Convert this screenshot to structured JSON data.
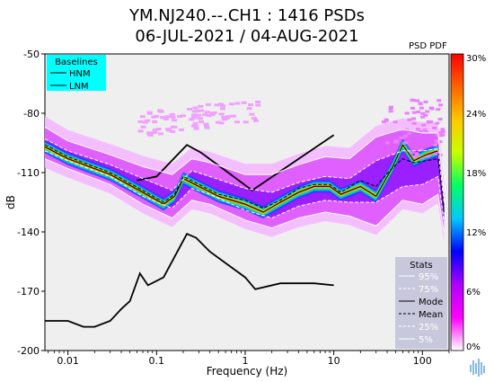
{
  "header": {
    "title_line1": "YM.NJ240.--.CH1 : 1416 PSDs",
    "title_line2": "06-JUL-2021 / 04-AUG-2021",
    "pdf_label": "PSD PDF"
  },
  "chart_data": {
    "type": "line",
    "xlabel": "Frequency (Hz)",
    "ylabel": "dB",
    "x_scale": "log",
    "xlim": [
      0.0055,
      200
    ],
    "ylim": [
      -200,
      -50
    ],
    "x_ticks": [
      0.01,
      0.1,
      1,
      10,
      100
    ],
    "x_tick_labels": [
      "0.01",
      "0.1",
      "1",
      "10",
      "100"
    ],
    "y_ticks": [
      -50,
      -80,
      -110,
      -140,
      -170,
      -200
    ],
    "y_tick_labels": [
      "-50",
      "-80",
      "-110",
      "-140",
      "-170",
      "-200"
    ],
    "baselines_legend": {
      "title": "Baselines",
      "entries": [
        "HNM",
        "LNM"
      ],
      "background": "#00ffff"
    },
    "stats_legend": {
      "title": "Stats",
      "entries": [
        "95%",
        "75%",
        "Mode",
        "Mean",
        "25%",
        "5%"
      ],
      "background": "#c8c8dc"
    },
    "colorbar": {
      "min": 0,
      "max": 30,
      "unit": "%",
      "tick_labels": [
        "30%",
        "24%",
        "18%",
        "12%",
        "6%",
        "0%"
      ],
      "colors": [
        "#ffffff",
        "#ff00ff",
        "#b000ff",
        "#0000ff",
        "#00c8ff",
        "#00ff64",
        "#c8ff00",
        "#ffc800",
        "#ff6400",
        "#ff0000"
      ]
    },
    "series": [
      {
        "name": "HNM",
        "color": "#000000",
        "x": [
          0.06,
          0.1,
          0.22,
          0.32,
          1.2,
          10
        ],
        "y": [
          -114,
          -112,
          -96,
          -100,
          -119,
          -91
        ]
      },
      {
        "name": "LNM",
        "color": "#000000",
        "x": [
          0.0055,
          0.006,
          0.01,
          0.015,
          0.02,
          0.03,
          0.04,
          0.05,
          0.065,
          0.08,
          0.12,
          0.22,
          0.28,
          0.4,
          1.0,
          1.3,
          2.5,
          6.0,
          10
        ],
        "y": [
          -185,
          -185,
          -185,
          -188,
          -188,
          -185,
          -179,
          -175,
          -161,
          -167,
          -163,
          -141,
          -143,
          -150,
          -163,
          -169,
          -166,
          -166,
          -167
        ]
      },
      {
        "name": "Mode",
        "color": "#000000",
        "x": [
          0.0055,
          0.01,
          0.03,
          0.07,
          0.12,
          0.16,
          0.2,
          0.3,
          0.5,
          1.0,
          1.6,
          2.5,
          4.0,
          6.0,
          9.0,
          12,
          20,
          30,
          45,
          60,
          80,
          110,
          150,
          175
        ],
        "y": [
          -97,
          -103,
          -111,
          -120,
          -126,
          -122,
          -113,
          -117,
          -122,
          -126,
          -130,
          -125,
          -120,
          -117,
          -117,
          -121,
          -117,
          -122,
          -108,
          -96,
          -104,
          -101,
          -99,
          -130
        ]
      },
      {
        "name": "Mean",
        "color": "#000000",
        "x": [
          0.0055,
          0.01,
          0.03,
          0.07,
          0.12,
          0.16,
          0.2,
          0.3,
          0.5,
          1.0,
          1.6,
          2.5,
          4.0,
          6.0,
          9.0,
          12,
          20,
          30,
          45,
          60,
          80,
          110,
          150,
          175
        ],
        "y": [
          -96,
          -102,
          -110,
          -119,
          -125,
          -121,
          -112,
          -116,
          -121,
          -124,
          -128,
          -124,
          -118,
          -116,
          -116,
          -120,
          -114,
          -117,
          -108,
          -103,
          -105,
          -104,
          -103,
          -128
        ]
      },
      {
        "name": "95%",
        "color": "#ffffff",
        "x": [
          0.0055,
          0.01,
          0.03,
          0.07,
          0.15,
          0.25,
          0.4,
          1.0,
          2.0,
          4.0,
          8.0,
          15,
          30,
          60,
          100,
          150,
          175
        ],
        "y": [
          -87,
          -94,
          -101,
          -107,
          -111,
          -103,
          -105,
          -111,
          -111,
          -106,
          -102,
          -103,
          -92,
          -88,
          -90,
          -90,
          -120
        ]
      },
      {
        "name": "75%",
        "color": "#ffffff",
        "x": [
          0.0055,
          0.01,
          0.03,
          0.07,
          0.15,
          0.25,
          0.4,
          1.0,
          2.0,
          4.0,
          8.0,
          15,
          30,
          60,
          100,
          150,
          175
        ],
        "y": [
          -93,
          -99,
          -106,
          -113,
          -119,
          -109,
          -112,
          -118,
          -120,
          -115,
          -112,
          -113,
          -104,
          -99,
          -99,
          -98,
          -125
        ]
      },
      {
        "name": "25%",
        "color": "#ffffff",
        "x": [
          0.0055,
          0.01,
          0.03,
          0.07,
          0.15,
          0.25,
          0.4,
          1.0,
          2.0,
          4.0,
          8.0,
          15,
          30,
          60,
          100,
          150,
          175
        ],
        "y": [
          -99,
          -104,
          -112,
          -122,
          -128,
          -118,
          -121,
          -129,
          -133,
          -127,
          -124,
          -125,
          -125,
          -117,
          -116,
          -112,
          -135
        ]
      },
      {
        "name": "5%",
        "color": "#ffffff",
        "x": [
          0.0055,
          0.01,
          0.03,
          0.07,
          0.15,
          0.25,
          0.4,
          1.0,
          2.0,
          4.0,
          8.0,
          15,
          30,
          60,
          100,
          150,
          175
        ],
        "y": [
          -103,
          -108,
          -116,
          -126,
          -133,
          -124,
          -126,
          -134,
          -138,
          -133,
          -130,
          -132,
          -137,
          -124,
          -126,
          -121,
          -140
        ]
      }
    ]
  }
}
